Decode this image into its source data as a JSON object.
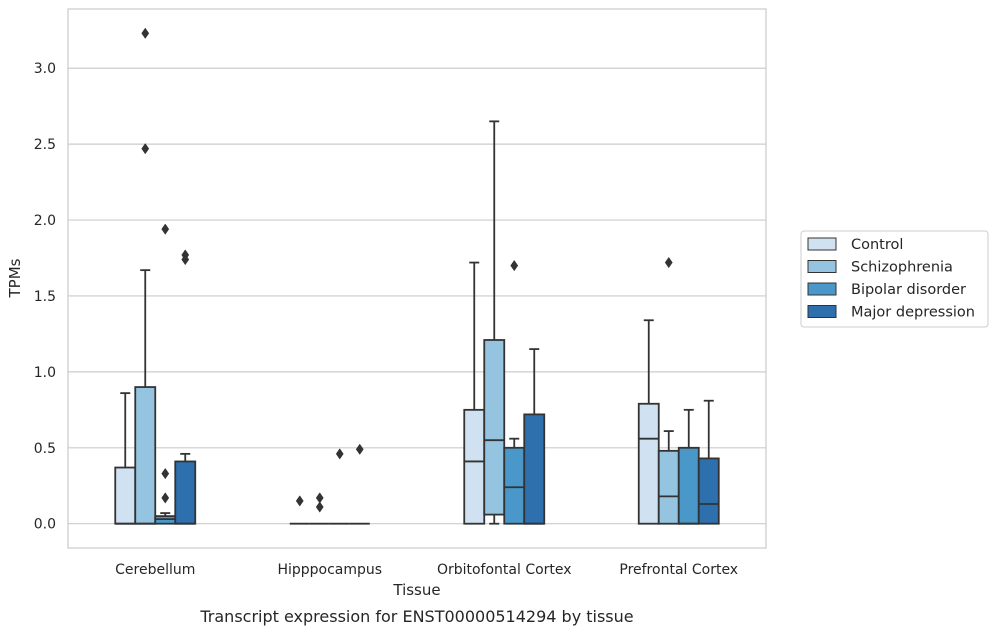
{
  "caption": "Transcript expression for ENST00000514294 by tissue",
  "chart_data": {
    "type": "box",
    "xlabel": "Tissue",
    "ylabel": "TPMs",
    "ylim": [
      -0.16,
      3.39
    ],
    "yticks": [
      "0.0",
      "0.5",
      "1.0",
      "1.5",
      "2.0",
      "2.5",
      "3.0"
    ],
    "grid": "horizontal",
    "legend_placement": "right",
    "categories": [
      "Cerebellum",
      "Hipppocampus",
      "Orbitofontal Cortex",
      "Prefrontal Cortex"
    ],
    "series": [
      {
        "name": "Control",
        "color": "#d0e1f2",
        "boxes": [
          {
            "q1": 0.0,
            "median": 0.0,
            "q3": 0.37,
            "whisker_low": 0.0,
            "whisker_high": 0.86,
            "outliers": []
          },
          {
            "q1": 0.0,
            "median": 0.0,
            "q3": 0.0,
            "whisker_low": 0.0,
            "whisker_high": 0.0,
            "outliers": [
              0.15
            ]
          },
          {
            "q1": 0.0,
            "median": 0.41,
            "q3": 0.75,
            "whisker_low": 0.0,
            "whisker_high": 1.72,
            "outliers": []
          },
          {
            "q1": 0.0,
            "median": 0.56,
            "q3": 0.79,
            "whisker_low": 0.0,
            "whisker_high": 1.34,
            "outliers": []
          }
        ]
      },
      {
        "name": "Schizophrenia",
        "color": "#94c4df",
        "boxes": [
          {
            "q1": 0.0,
            "median": 0.0,
            "q3": 0.9,
            "whisker_low": 0.0,
            "whisker_high": 1.67,
            "outliers": [
              3.23,
              2.47
            ]
          },
          {
            "q1": 0.0,
            "median": 0.0,
            "q3": 0.0,
            "whisker_low": 0.0,
            "whisker_high": 0.0,
            "outliers": [
              0.17,
              0.11
            ]
          },
          {
            "q1": 0.06,
            "median": 0.55,
            "q3": 1.21,
            "whisker_low": 0.0,
            "whisker_high": 2.65,
            "outliers": []
          },
          {
            "q1": 0.0,
            "median": 0.18,
            "q3": 0.48,
            "whisker_low": 0.0,
            "whisker_high": 0.61,
            "outliers": [
              1.72
            ]
          }
        ]
      },
      {
        "name": "Bipolar disorder",
        "color": "#4a98c9",
        "boxes": [
          {
            "q1": 0.0,
            "median": 0.03,
            "q3": 0.05,
            "whisker_low": 0.0,
            "whisker_high": 0.07,
            "outliers": [
              1.94,
              0.33,
              0.17
            ]
          },
          {
            "q1": 0.0,
            "median": 0.0,
            "q3": 0.0,
            "whisker_low": 0.0,
            "whisker_high": 0.0,
            "outliers": [
              0.46
            ]
          },
          {
            "q1": 0.0,
            "median": 0.24,
            "q3": 0.5,
            "whisker_low": 0.0,
            "whisker_high": 0.56,
            "outliers": [
              1.7
            ]
          },
          {
            "q1": 0.0,
            "median": 0.0,
            "q3": 0.5,
            "whisker_low": 0.0,
            "whisker_high": 0.75,
            "outliers": []
          }
        ]
      },
      {
        "name": "Major depression",
        "color": "#2e6fae",
        "boxes": [
          {
            "q1": 0.0,
            "median": 0.0,
            "q3": 0.41,
            "whisker_low": 0.0,
            "whisker_high": 0.46,
            "outliers": [
              1.77,
              1.74
            ]
          },
          {
            "q1": 0.0,
            "median": 0.0,
            "q3": 0.0,
            "whisker_low": 0.0,
            "whisker_high": 0.0,
            "outliers": [
              0.49
            ]
          },
          {
            "q1": 0.0,
            "median": 0.0,
            "q3": 0.72,
            "whisker_low": 0.0,
            "whisker_high": 1.15,
            "outliers": []
          },
          {
            "q1": 0.0,
            "median": 0.13,
            "q3": 0.43,
            "whisker_low": 0.0,
            "whisker_high": 0.81,
            "outliers": []
          }
        ]
      }
    ],
    "edge_color": "#333333",
    "grid_color": "#cccccc"
  }
}
